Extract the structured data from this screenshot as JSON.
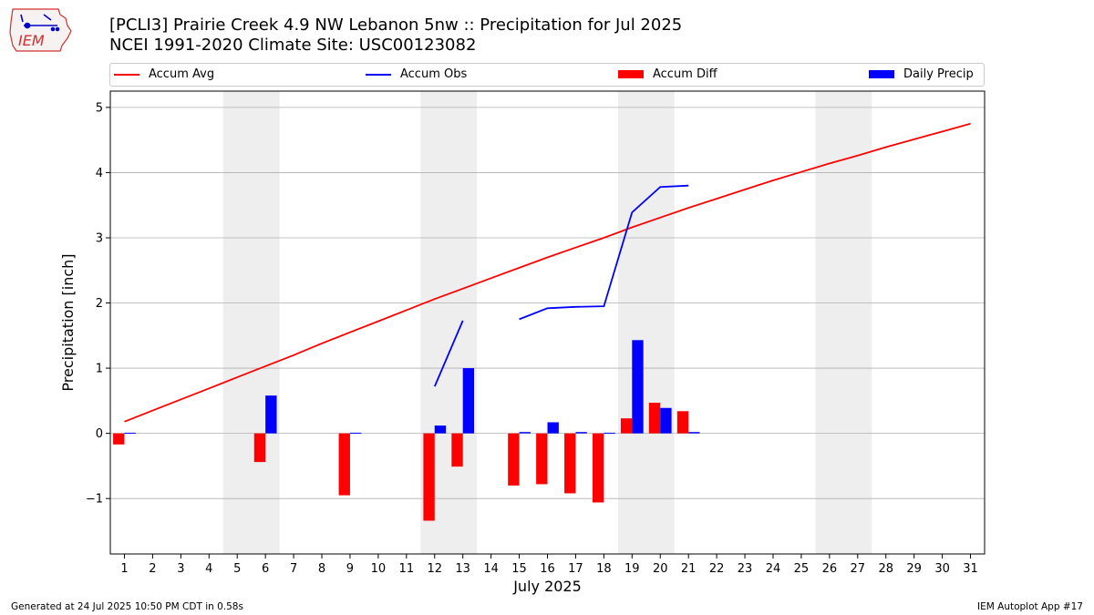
{
  "header": {
    "title_line1": "[PCLI3] Prairie Creek 4.9 NW Lebanon 5nw :: Precipitation for Jul 2025",
    "title_line2": "NCEI 1991-2020 Climate Site: USC00123082"
  },
  "logo": {
    "text": "IEM"
  },
  "footer": {
    "generated": "Generated at 24 Jul 2025 10:50 PM CDT in 0.58s",
    "app": "IEM Autoplot App #17"
  },
  "colors": {
    "avg": "#ff0000",
    "obs": "#0000ff",
    "diff": "#ff0000",
    "daily": "#0000ff",
    "weekend": "#eeeeee",
    "grid": "#b0b0b0"
  },
  "chart_data": {
    "type": "bar",
    "xlabel": "July 2025",
    "ylabel": "Precipitation [inch]",
    "xlim": [
      0.5,
      31.5
    ],
    "ylim": [
      -1.85,
      5.25
    ],
    "yticks": [
      -1,
      0,
      1,
      2,
      3,
      4,
      5
    ],
    "ytick_labels": [
      "−1",
      "0",
      "1",
      "2",
      "3",
      "4",
      "5"
    ],
    "xticks": [
      1,
      2,
      3,
      4,
      5,
      6,
      7,
      8,
      9,
      10,
      11,
      12,
      13,
      14,
      15,
      16,
      17,
      18,
      19,
      20,
      21,
      22,
      23,
      24,
      25,
      26,
      27,
      28,
      29,
      30,
      31
    ],
    "grid": "y",
    "legend_position": "top",
    "weekend_bands": [
      [
        4.5,
        6.5
      ],
      [
        11.5,
        13.5
      ],
      [
        18.5,
        20.5
      ],
      [
        25.5,
        27.5
      ]
    ],
    "series": [
      {
        "name": "Accum Avg",
        "kind": "line",
        "x": [
          1,
          2,
          3,
          4,
          5,
          6,
          7,
          8,
          9,
          10,
          11,
          12,
          13,
          14,
          15,
          16,
          17,
          18,
          19,
          20,
          21,
          22,
          23,
          24,
          25,
          26,
          27,
          28,
          29,
          30,
          31
        ],
        "values": [
          0.18,
          0.35,
          0.52,
          0.69,
          0.86,
          1.03,
          1.2,
          1.38,
          1.55,
          1.72,
          1.89,
          2.06,
          2.22,
          2.38,
          2.54,
          2.7,
          2.85,
          3.0,
          3.16,
          3.31,
          3.46,
          3.6,
          3.74,
          3.88,
          4.01,
          4.14,
          4.26,
          4.39,
          4.51,
          4.63,
          4.75
        ]
      },
      {
        "name": "Accum Obs",
        "kind": "line",
        "x": [
          12,
          13,
          null,
          15,
          16,
          17,
          18,
          19,
          20,
          21
        ],
        "values": [
          0.72,
          1.73,
          null,
          1.75,
          1.92,
          1.94,
          1.95,
          3.39,
          3.78,
          3.8
        ]
      },
      {
        "name": "Accum Diff",
        "kind": "bar",
        "x": [
          1,
          6,
          9,
          12,
          13,
          15,
          16,
          17,
          18,
          19,
          20,
          21
        ],
        "values": [
          -0.17,
          -0.44,
          -0.95,
          -1.34,
          -0.51,
          -0.8,
          -0.78,
          -0.92,
          -1.06,
          0.23,
          0.47,
          0.34
        ]
      },
      {
        "name": "Daily Precip",
        "kind": "bar",
        "x": [
          1,
          6,
          9,
          12,
          13,
          15,
          16,
          17,
          18,
          19,
          20,
          21
        ],
        "values": [
          0.01,
          0.58,
          0.01,
          0.12,
          1.0,
          0.02,
          0.17,
          0.02,
          0.01,
          1.43,
          0.39,
          0.02
        ]
      }
    ]
  }
}
